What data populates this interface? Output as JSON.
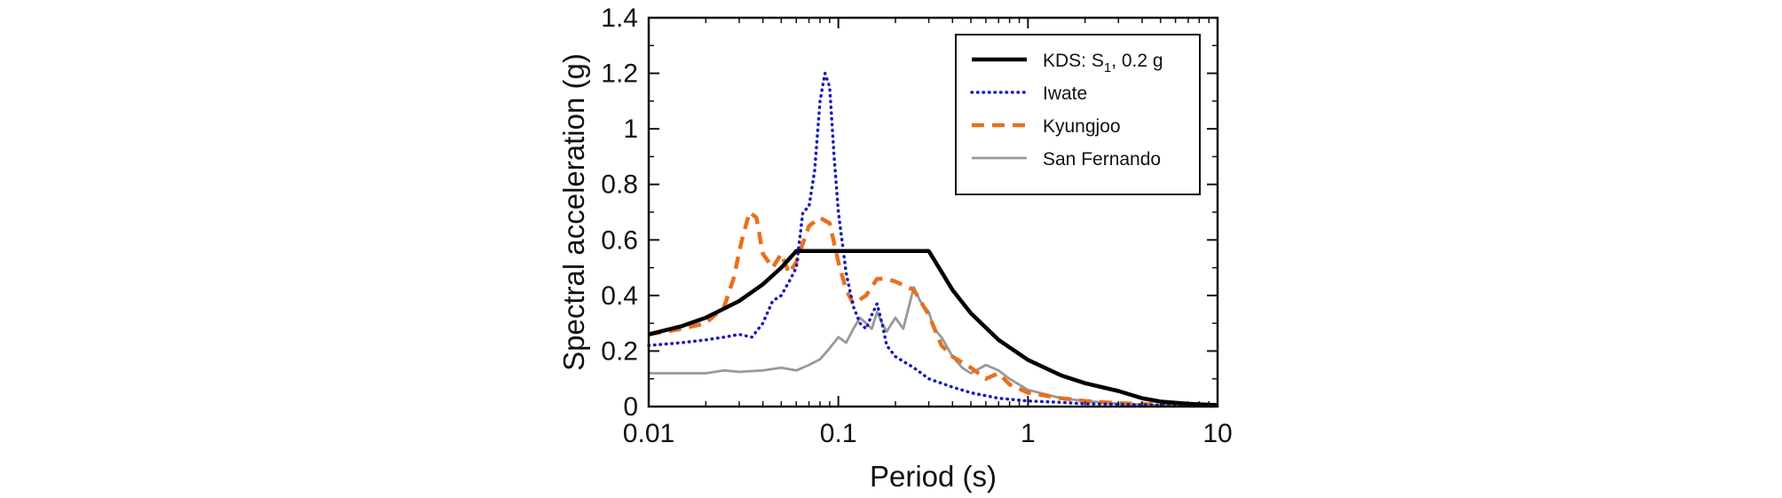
{
  "chart_data": {
    "type": "line",
    "xscale": "log",
    "xlabel": "Period (s)",
    "ylabel": "Spectral acceleration (g)",
    "xlim": [
      0.01,
      10
    ],
    "ylim": [
      0,
      1.4
    ],
    "xticks": [
      0.01,
      0.1,
      1,
      10
    ],
    "xtick_labels": [
      "0.01",
      "0.1",
      "1",
      "10"
    ],
    "yticks": [
      0,
      0.2,
      0.4,
      0.6,
      0.8,
      1,
      1.2,
      1.4
    ],
    "ytick_labels": [
      "0",
      "0.2",
      "0.4",
      "0.6",
      "0.8",
      "1",
      "1.2",
      "1.4"
    ],
    "grid": false,
    "legend_position": "top-right",
    "series": [
      {
        "name": "KDS",
        "legend_main": "KDS: S",
        "legend_sub": "1",
        "legend_tail": ", 0.2 g",
        "color": "#000000",
        "style": "solid-thick",
        "x": [
          0.01,
          0.015,
          0.02,
          0.03,
          0.04,
          0.05,
          0.06,
          0.1,
          0.2,
          0.3,
          0.4,
          0.5,
          0.7,
          1,
          1.5,
          2,
          3,
          4,
          5,
          7,
          10
        ],
        "y": [
          0.26,
          0.29,
          0.32,
          0.38,
          0.44,
          0.5,
          0.56,
          0.56,
          0.56,
          0.56,
          0.42,
          0.336,
          0.24,
          0.168,
          0.112,
          0.084,
          0.056,
          0.03,
          0.018,
          0.01,
          0.005
        ]
      },
      {
        "name": "Iwate",
        "legend_main": "Iwate",
        "color": "#1a1aba",
        "style": "dotted",
        "x": [
          0.01,
          0.015,
          0.02,
          0.025,
          0.03,
          0.035,
          0.04,
          0.045,
          0.05,
          0.055,
          0.06,
          0.065,
          0.07,
          0.075,
          0.08,
          0.085,
          0.09,
          0.095,
          0.1,
          0.11,
          0.12,
          0.13,
          0.14,
          0.15,
          0.16,
          0.17,
          0.18,
          0.2,
          0.25,
          0.3,
          0.4,
          0.5,
          0.7,
          1,
          1.5,
          2,
          3,
          5,
          10
        ],
        "y": [
          0.22,
          0.23,
          0.24,
          0.25,
          0.26,
          0.25,
          0.3,
          0.38,
          0.4,
          0.45,
          0.5,
          0.7,
          0.72,
          0.85,
          1.1,
          1.2,
          1.15,
          0.9,
          0.7,
          0.48,
          0.36,
          0.3,
          0.28,
          0.33,
          0.37,
          0.3,
          0.22,
          0.18,
          0.14,
          0.1,
          0.07,
          0.05,
          0.03,
          0.02,
          0.015,
          0.01,
          0.008,
          0.005,
          0.003
        ]
      },
      {
        "name": "Kyungjoo",
        "legend_main": "Kyungjoo",
        "color": "#e8701e",
        "style": "dashed",
        "x": [
          0.01,
          0.015,
          0.02,
          0.025,
          0.028,
          0.031,
          0.034,
          0.037,
          0.04,
          0.045,
          0.05,
          0.055,
          0.06,
          0.07,
          0.08,
          0.09,
          0.1,
          0.11,
          0.12,
          0.14,
          0.16,
          0.18,
          0.2,
          0.25,
          0.3,
          0.35,
          0.4,
          0.5,
          0.6,
          0.7,
          0.8,
          1,
          1.5,
          2,
          3,
          5,
          10
        ],
        "y": [
          0.26,
          0.28,
          0.3,
          0.36,
          0.46,
          0.6,
          0.7,
          0.68,
          0.55,
          0.5,
          0.55,
          0.48,
          0.52,
          0.65,
          0.68,
          0.66,
          0.52,
          0.42,
          0.37,
          0.4,
          0.46,
          0.46,
          0.45,
          0.42,
          0.33,
          0.22,
          0.18,
          0.14,
          0.1,
          0.12,
          0.08,
          0.05,
          0.03,
          0.02,
          0.012,
          0.007,
          0.003
        ]
      },
      {
        "name": "San Fernando",
        "legend_main": "San Fernando",
        "color": "#999999",
        "style": "solid-thin",
        "x": [
          0.01,
          0.02,
          0.025,
          0.03,
          0.04,
          0.05,
          0.06,
          0.07,
          0.08,
          0.09,
          0.1,
          0.11,
          0.12,
          0.13,
          0.14,
          0.15,
          0.16,
          0.17,
          0.18,
          0.2,
          0.22,
          0.25,
          0.27,
          0.3,
          0.32,
          0.35,
          0.4,
          0.45,
          0.5,
          0.6,
          0.7,
          0.8,
          1,
          1.5,
          2,
          3,
          5,
          10
        ],
        "y": [
          0.12,
          0.12,
          0.13,
          0.125,
          0.13,
          0.14,
          0.13,
          0.15,
          0.17,
          0.21,
          0.25,
          0.23,
          0.28,
          0.32,
          0.3,
          0.28,
          0.34,
          0.3,
          0.27,
          0.32,
          0.28,
          0.43,
          0.38,
          0.34,
          0.28,
          0.25,
          0.18,
          0.14,
          0.12,
          0.15,
          0.13,
          0.1,
          0.06,
          0.03,
          0.02,
          0.01,
          0.005,
          0.002
        ]
      }
    ]
  }
}
